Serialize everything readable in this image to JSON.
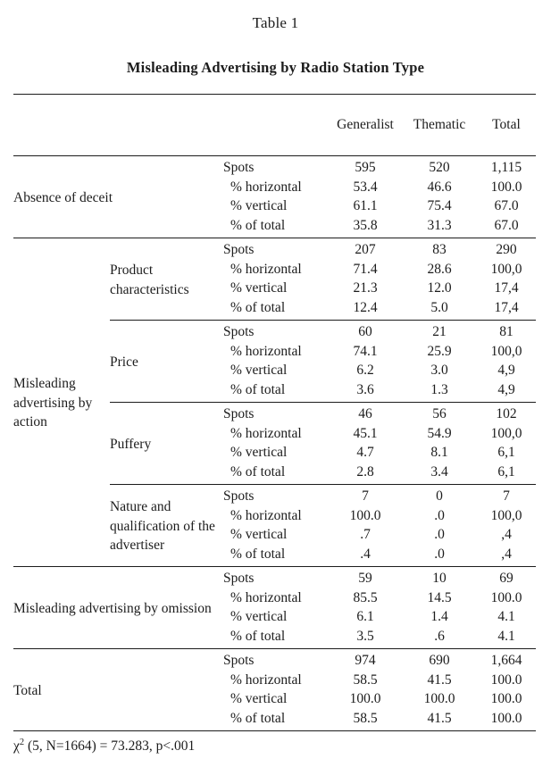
{
  "page": {
    "title": "Table 1",
    "subtitle": "Misleading Advertising by Radio Station Type",
    "footnote": {
      "chi": "χ",
      "sup": "2",
      "rest": " (5, N=1664) = 73.283, p<.001"
    }
  },
  "table": {
    "column_headers": [
      "Generalist",
      "Thematic",
      "Total"
    ],
    "measure_labels": [
      "Spots",
      "% horizontal",
      "% vertical",
      "% of total"
    ],
    "blocks": [
      {
        "kind": "plain",
        "label": "Absence of deceit",
        "values": [
          [
            "595",
            "520",
            "1,115"
          ],
          [
            "53.4",
            "46.6",
            "100.0"
          ],
          [
            "61.1",
            "75.4",
            "67.0"
          ],
          [
            "35.8",
            "31.3",
            "67.0"
          ]
        ]
      },
      {
        "kind": "group-start",
        "group_label": "Misleading advertising by action",
        "sub_label": "Product characteristics",
        "values": [
          [
            "207",
            "83",
            "290"
          ],
          [
            "71.4",
            "28.6",
            "100,0"
          ],
          [
            "21.3",
            "12.0",
            "17,4"
          ],
          [
            "12.4",
            "5.0",
            "17,4"
          ]
        ]
      },
      {
        "kind": "group-sub",
        "sub_label": "Price",
        "values": [
          [
            "60",
            "21",
            "81"
          ],
          [
            "74.1",
            "25.9",
            "100,0"
          ],
          [
            "6.2",
            "3.0",
            "4,9"
          ],
          [
            "3.6",
            "1.3",
            "4,9"
          ]
        ]
      },
      {
        "kind": "group-sub",
        "sub_label": "Puffery",
        "values": [
          [
            "46",
            "56",
            "102"
          ],
          [
            "45.1",
            "54.9",
            "100,0"
          ],
          [
            "4.7",
            "8.1",
            "6,1"
          ],
          [
            "2.8",
            "3.4",
            "6,1"
          ]
        ]
      },
      {
        "kind": "group-sub",
        "sub_label": "Nature and qualification of the advertiser",
        "values": [
          [
            "7",
            "0",
            "7"
          ],
          [
            "100.0",
            ".0",
            "100,0"
          ],
          [
            ".7",
            ".0",
            ",4"
          ],
          [
            ".4",
            ".0",
            ",4"
          ]
        ]
      },
      {
        "kind": "plain",
        "label": "Misleading advertising by omission",
        "values": [
          [
            "59",
            "10",
            "69"
          ],
          [
            "85.5",
            "14.5",
            "100.0"
          ],
          [
            "6.1",
            "1.4",
            "4.1"
          ],
          [
            "3.5",
            ".6",
            "4.1"
          ]
        ]
      },
      {
        "kind": "plain",
        "label": "Total",
        "values": [
          [
            "974",
            "690",
            "1,664"
          ],
          [
            "58.5",
            "41.5",
            "100.0"
          ],
          [
            "100.0",
            "100.0",
            "100.0"
          ],
          [
            "58.5",
            "41.5",
            "100.0"
          ]
        ]
      }
    ]
  }
}
